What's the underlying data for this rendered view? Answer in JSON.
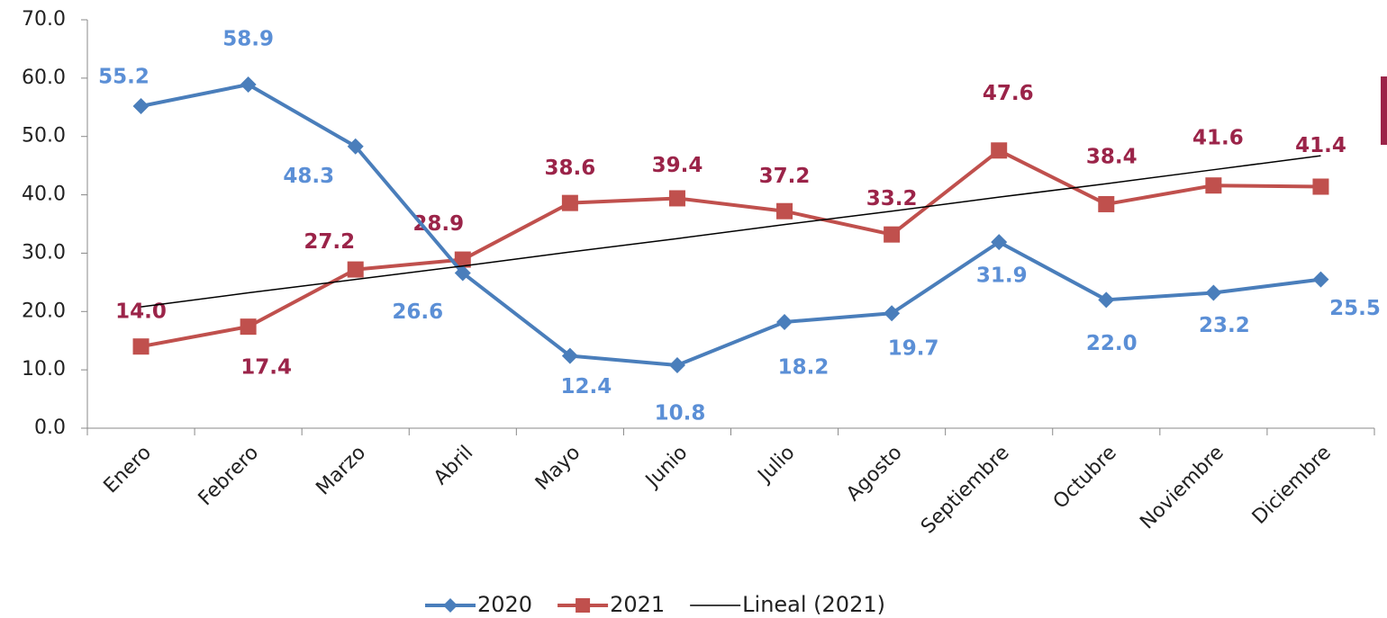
{
  "chart_data": {
    "type": "line",
    "categories": [
      "Enero",
      "Febrero",
      "Marzo",
      "Abril",
      "Mayo",
      "Junio",
      "Julio",
      "Agosto",
      "Septiembre",
      "Octubre",
      "Noviembre",
      "Diciembre"
    ],
    "series": [
      {
        "name": "2020",
        "color": "#4a7ebb",
        "label_color": "#5b8fd6",
        "values": [
          55.2,
          58.9,
          48.3,
          26.6,
          12.4,
          10.8,
          18.2,
          19.7,
          31.9,
          22.0,
          23.2,
          25.5
        ],
        "value_labels": [
          "55.2",
          "58.9",
          "48.3",
          "26.6",
          "12.4",
          "10.8",
          "18.2",
          "19.7",
          "31.9",
          "22.0",
          "23.2",
          "25.5"
        ],
        "marker": "diamond"
      },
      {
        "name": "2021",
        "color": "#c0504d",
        "label_color": "#9b2449",
        "values": [
          14.0,
          17.4,
          27.2,
          28.9,
          38.6,
          39.4,
          37.2,
          33.2,
          47.6,
          38.4,
          41.6,
          41.4
        ],
        "value_labels": [
          "14.0",
          "17.4",
          "27.2",
          "28.9",
          "38.6",
          "39.4",
          "37.2",
          "33.2",
          "47.6",
          "38.4",
          "41.6",
          "41.4"
        ],
        "marker": "square"
      },
      {
        "name": "Lineal (2021)",
        "color": "#000000",
        "values": [
          20.8,
          23.2,
          25.5,
          27.8,
          30.2,
          32.5,
          34.9,
          37.2,
          39.6,
          41.9,
          44.3,
          46.7
        ],
        "marker": "none"
      }
    ],
    "ylim": [
      0,
      70
    ],
    "yticks": [
      {
        "value": 0,
        "label": "0.0"
      },
      {
        "value": 10,
        "label": "10.0"
      },
      {
        "value": 20,
        "label": "20.0"
      },
      {
        "value": 30,
        "label": "30.0"
      },
      {
        "value": 40,
        "label": "40.0"
      },
      {
        "value": 50,
        "label": "50.0"
      },
      {
        "value": 60,
        "label": "60.0"
      },
      {
        "value": 70,
        "label": "70.0"
      }
    ],
    "legend": "bottom"
  }
}
